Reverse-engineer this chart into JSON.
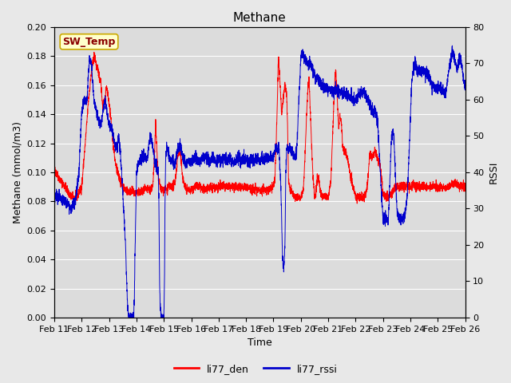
{
  "title": "Methane",
  "xlabel": "Time",
  "ylabel_left": "Methane (mmol/m3)",
  "ylabel_right": "RSSI",
  "legend_label_red": "li77_den",
  "legend_label_blue": "li77_rssi",
  "annotation_text": "SW_Temp",
  "xlim_start": 0,
  "xlim_end": 15,
  "ylim_left": [
    0.0,
    0.2
  ],
  "ylim_right": [
    0,
    80
  ],
  "yticks_left": [
    0.0,
    0.02,
    0.04,
    0.06,
    0.08,
    0.1,
    0.12,
    0.14,
    0.16,
    0.18,
    0.2
  ],
  "yticks_right": [
    0,
    10,
    20,
    30,
    40,
    50,
    60,
    70,
    80
  ],
  "xtick_labels": [
    "Feb 11",
    "Feb 12",
    "Feb 13",
    "Feb 14",
    "Feb 15",
    "Feb 16",
    "Feb 17",
    "Feb 18",
    "Feb 19",
    "Feb 20",
    "Feb 21",
    "Feb 22",
    "Feb 23",
    "Feb 24",
    "Feb 25",
    "Feb 26"
  ],
  "background_color": "#e8e8e8",
  "plot_background": "#dcdcdc",
  "red_color": "#ff0000",
  "blue_color": "#0000cc",
  "grid_color": "#ffffff",
  "title_fontsize": 11,
  "axis_fontsize": 9,
  "tick_fontsize": 8,
  "annotation_fontsize": 9,
  "annotation_color": "#8B0000",
  "annotation_bg": "#ffffcc",
  "annotation_edge": "#ccaa00"
}
